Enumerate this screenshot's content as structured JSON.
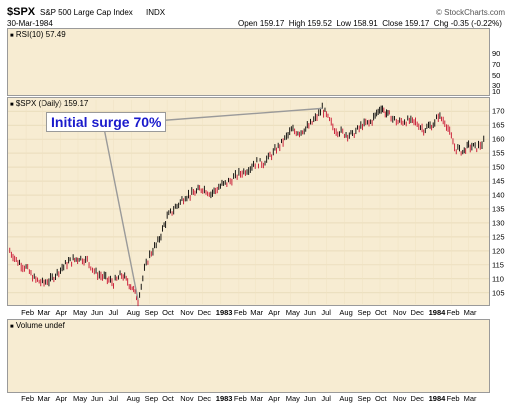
{
  "header": {
    "symbol": "$SPX",
    "name": "S&P 500 Large Cap Index",
    "exchange": "INDX",
    "date": "30-Mar-1984",
    "open_label": "Open",
    "open": "159.17",
    "high_label": "High",
    "high": "159.52",
    "low_label": "Low",
    "low": "158.91",
    "close_label": "Close",
    "close": "159.17",
    "chg_label": "Chg",
    "chg": "-0.35 (-0.22%)",
    "credit": "© StockCharts.com"
  },
  "rsi_panel": {
    "label": "RSI(10) 57.49",
    "ticks": [
      "90",
      "70",
      "50",
      "30",
      "10"
    ]
  },
  "price_panel": {
    "label": "$SPX (Daily) 159.17",
    "annotation": "Initial surge 70%"
  },
  "volume_panel": {
    "label": "Volume undef"
  },
  "colors": {
    "up": "#000000",
    "down": "#c8102e",
    "panel": "#f7ecd2",
    "annotation": "#1a1acc"
  },
  "chart_data": {
    "type": "line",
    "title": "$SPX (Daily) 159.17",
    "y_ticks": [
      105,
      110,
      115,
      120,
      125,
      130,
      135,
      140,
      145,
      150,
      155,
      160,
      165,
      170
    ],
    "ylim": [
      101,
      174
    ],
    "x_tick_labels": [
      "Feb",
      "Mar",
      "Apr",
      "May",
      "Jun",
      "Jul",
      "Aug",
      "Sep",
      "Oct",
      "Nov",
      "Dec",
      "1983",
      "Feb",
      "Mar",
      "Apr",
      "May",
      "Jun",
      "Jul",
      "Aug",
      "Sep",
      "Oct",
      "Nov",
      "Dec",
      "1984",
      "Feb",
      "Mar"
    ],
    "x_tick_bold": [
      "1983",
      "1984"
    ],
    "series": [
      {
        "x": [
          "1982-01-04",
          "1982-01-18",
          "1982-02-01",
          "1982-02-15",
          "1982-03-01",
          "1982-03-15",
          "1982-04-01",
          "1982-04-15",
          "1982-05-03",
          "1982-05-17",
          "1982-06-01",
          "1982-06-15",
          "1982-07-01",
          "1982-07-15",
          "1982-08-02",
          "1982-08-12",
          "1982-08-23",
          "1982-09-01",
          "1982-09-15",
          "1982-10-01",
          "1982-10-15",
          "1982-11-01",
          "1982-11-15",
          "1982-12-01",
          "1982-12-15",
          "1983-01-03",
          "1983-01-17",
          "1983-02-01",
          "1983-02-15",
          "1983-03-01",
          "1983-03-15",
          "1983-04-01",
          "1983-04-15",
          "1983-05-02",
          "1983-05-16",
          "1983-06-01",
          "1983-06-15",
          "1983-06-24",
          "1983-07-01",
          "1983-07-15",
          "1983-08-01",
          "1983-08-15",
          "1983-09-01",
          "1983-09-15",
          "1983-10-03",
          "1983-10-10",
          "1983-10-17",
          "1983-11-01",
          "1983-11-15",
          "1983-12-01",
          "1983-12-15",
          "1984-01-03",
          "1984-01-09",
          "1984-01-23",
          "1984-02-06",
          "1984-02-20",
          "1984-03-01",
          "1984-03-15",
          "1984-03-30"
        ],
        "values": [
          120.0,
          116.0,
          114.0,
          110.0,
          108.5,
          109.5,
          113.5,
          116.0,
          117.5,
          116.5,
          112.0,
          110.5,
          108.5,
          111.5,
          107.0,
          102.5,
          113.0,
          118.5,
          123.0,
          132.0,
          135.5,
          139.5,
          140.5,
          142.5,
          140.5,
          143.5,
          145.0,
          147.5,
          149.0,
          151.5,
          151.5,
          155.0,
          158.5,
          163.0,
          162.5,
          164.5,
          168.0,
          171.0,
          168.5,
          163.5,
          162.0,
          161.5,
          165.0,
          166.0,
          171.5,
          169.5,
          168.5,
          166.0,
          166.5,
          166.0,
          163.5,
          165.5,
          168.5,
          165.5,
          157.0,
          155.5,
          157.5,
          157.0,
          159.2
        ]
      }
    ]
  }
}
